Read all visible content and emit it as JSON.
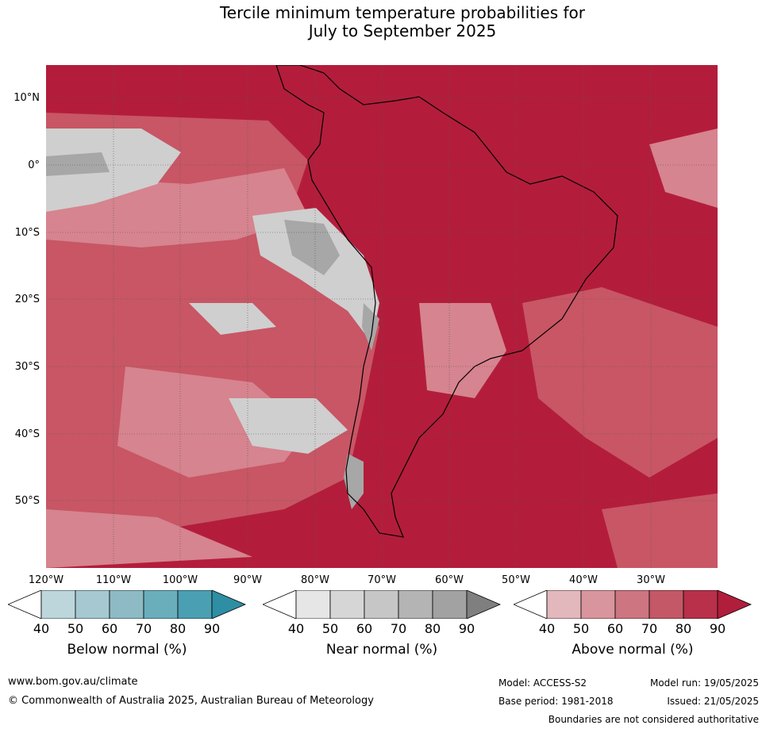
{
  "title_line1": "Tercile minimum temperature probabilities for",
  "title_line2": "July to September 2025",
  "lat_labels": [
    "10°N",
    "0°",
    "10°S",
    "20°S",
    "30°S",
    "40°S",
    "50°S"
  ],
  "lon_labels": [
    "120°W",
    "110°W",
    "100°W",
    "90°W",
    "80°W",
    "70°W",
    "60°W",
    "50°W",
    "40°W",
    "30°W"
  ],
  "colorbars": [
    {
      "title": "Below normal (%)",
      "ticks": [
        "40",
        "50",
        "60",
        "70",
        "80",
        "90"
      ],
      "colors": [
        "#ffffff",
        "#bdd6dc",
        "#a6c8d0",
        "#8dbac5",
        "#6aaebc",
        "#4aa0b2",
        "#2e8ea3"
      ]
    },
    {
      "title": "Near normal (%)",
      "ticks": [
        "40",
        "50",
        "60",
        "70",
        "80",
        "90"
      ],
      "colors": [
        "#ffffff",
        "#e6e6e6",
        "#d6d6d6",
        "#c6c6c6",
        "#b4b4b4",
        "#a2a2a2",
        "#7f7f7f"
      ]
    },
    {
      "title": "Above normal (%)",
      "ticks": [
        "40",
        "50",
        "60",
        "70",
        "80",
        "90"
      ],
      "colors": [
        "#ffffff",
        "#e3b8bd",
        "#d9959d",
        "#cd7580",
        "#c45866",
        "#b8304a",
        "#b01e3c"
      ]
    }
  ],
  "footer": {
    "url": "www.bom.gov.au/climate",
    "copyright": "© Commonwealth of Australia 2025, Australian Bureau of Meteorology",
    "model": "Model: ACCESS-S2",
    "model_run": "Model run: 19/05/2025",
    "base_period": "Base period: 1981-2018",
    "issued": "Issued: 21/05/2025",
    "disclaimer": "Boundaries are not considered authoritative"
  }
}
